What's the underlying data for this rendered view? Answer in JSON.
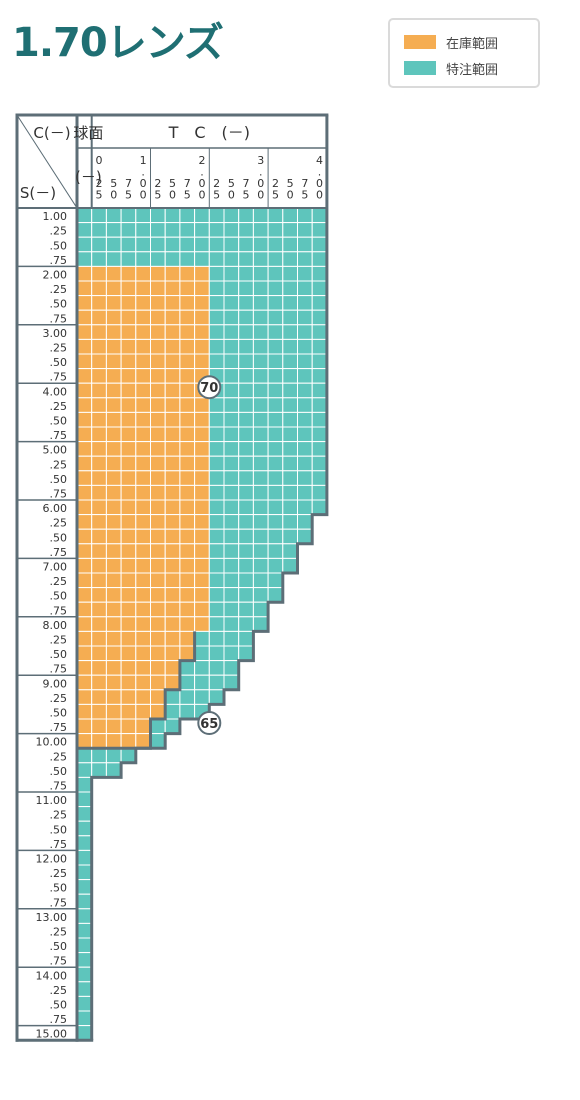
{
  "title": "1.70レンズ",
  "legend": {
    "stock_label": "在庫範囲",
    "order_label": "特注範囲"
  },
  "colors": {
    "stock": "#f5ad52",
    "order": "#5ec5bc",
    "border": "#5d6e77",
    "title": "#1f6f73"
  },
  "header": {
    "corner_c": "C(－)",
    "corner_s": "S(－)",
    "spherical": "球面",
    "sph_minus": "(－)",
    "tc": "T　C　(－)",
    "cyl_columns": [
      [
        "0",
        ".",
        "2",
        "5"
      ],
      [
        "",
        "",
        "5",
        "0"
      ],
      [
        "",
        "",
        "7",
        "5"
      ],
      [
        "1",
        ".",
        "0",
        "0"
      ],
      [
        "",
        "",
        "2",
        "5"
      ],
      [
        "",
        "",
        "5",
        "0"
      ],
      [
        "",
        "",
        "7",
        "5"
      ],
      [
        "2",
        ".",
        "0",
        "0"
      ],
      [
        "",
        "",
        "2",
        "5"
      ],
      [
        "",
        "",
        "5",
        "0"
      ],
      [
        "",
        "",
        "7",
        "5"
      ],
      [
        "3",
        ".",
        "0",
        "0"
      ],
      [
        "",
        "",
        "2",
        "5"
      ],
      [
        "",
        "",
        "5",
        "0"
      ],
      [
        "",
        "",
        "7",
        "5"
      ],
      [
        "4",
        ".",
        "0",
        "0"
      ]
    ]
  },
  "row_labels": [
    "1.00",
    ".25",
    ".50",
    ".75",
    "2.00",
    ".25",
    ".50",
    ".75",
    "3.00",
    ".25",
    ".50",
    ".75",
    "4.00",
    ".25",
    ".50",
    ".75",
    "5.00",
    ".25",
    ".50",
    ".75",
    "6.00",
    ".25",
    ".50",
    ".75",
    "7.00",
    ".25",
    ".50",
    ".75",
    "8.00",
    ".25",
    ".50",
    ".75",
    "9.00",
    ".25",
    ".50",
    ".75",
    "10.00",
    ".25",
    ".50",
    ".75",
    "11.00",
    ".25",
    ".50",
    ".75",
    "12.00",
    ".25",
    ".50",
    ".75",
    "13.00",
    ".25",
    ".50",
    ".75",
    "14.00",
    ".25",
    ".50",
    ".75",
    "15.00"
  ],
  "badges": [
    "70",
    "65"
  ]
}
